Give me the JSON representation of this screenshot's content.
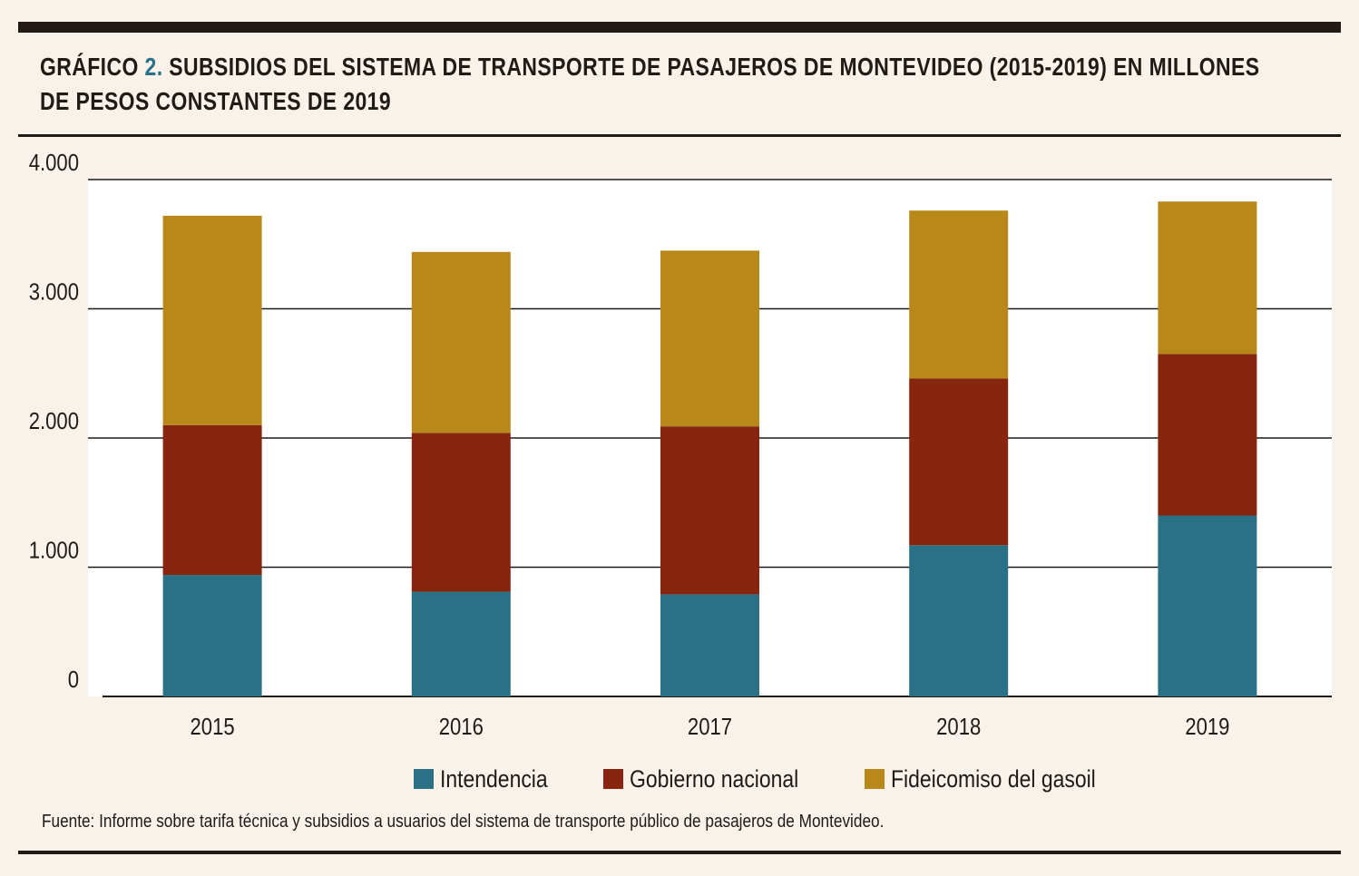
{
  "header": {
    "title_prefix": "GRÁFICO",
    "title_number": "2.",
    "title_text": "SUBSIDIOS DEL SISTEMA DE TRANSPORTE DE PASAJEROS DE MONTEVIDEO (2015-2019) EN MILLONES",
    "title_line2": "DE PESOS CONSTANTES DE 2019"
  },
  "colors": {
    "intendencia": "#2a7186",
    "gobierno_nacional": "#88250f",
    "fideicomiso": "#b8881a",
    "axis": "#1e1a16",
    "accent": "#2a7186"
  },
  "chart_data": {
    "type": "bar",
    "stacked": true,
    "categories": [
      "2015",
      "2016",
      "2017",
      "2018",
      "2019"
    ],
    "series": [
      {
        "name": "Intendencia",
        "values": [
          940,
          810,
          790,
          1170,
          1400
        ]
      },
      {
        "name": "Gobierno nacional",
        "values": [
          1160,
          1230,
          1300,
          1290,
          1250
        ]
      },
      {
        "name": "Fideicomiso del gasoil",
        "values": [
          1620,
          1400,
          1360,
          1300,
          1180
        ]
      }
    ],
    "yticks": [
      "4.000",
      "3.000",
      "2.000",
      "1.000",
      "0"
    ],
    "ytick_values": [
      4000,
      3000,
      2000,
      1000,
      0
    ],
    "ylim": [
      0,
      4000
    ],
    "grid": true,
    "legend_position": "bottom"
  },
  "legend": [
    {
      "label": "Intendencia",
      "color": "#2a7186"
    },
    {
      "label": "Gobierno nacional",
      "color": "#88250f"
    },
    {
      "label": "Fideicomiso del gasoil",
      "color": "#b8881a"
    }
  ],
  "source": "Fuente: Informe sobre tarifa técnica y subsidios a usuarios del sistema de transporte público de pasajeros de Montevideo."
}
